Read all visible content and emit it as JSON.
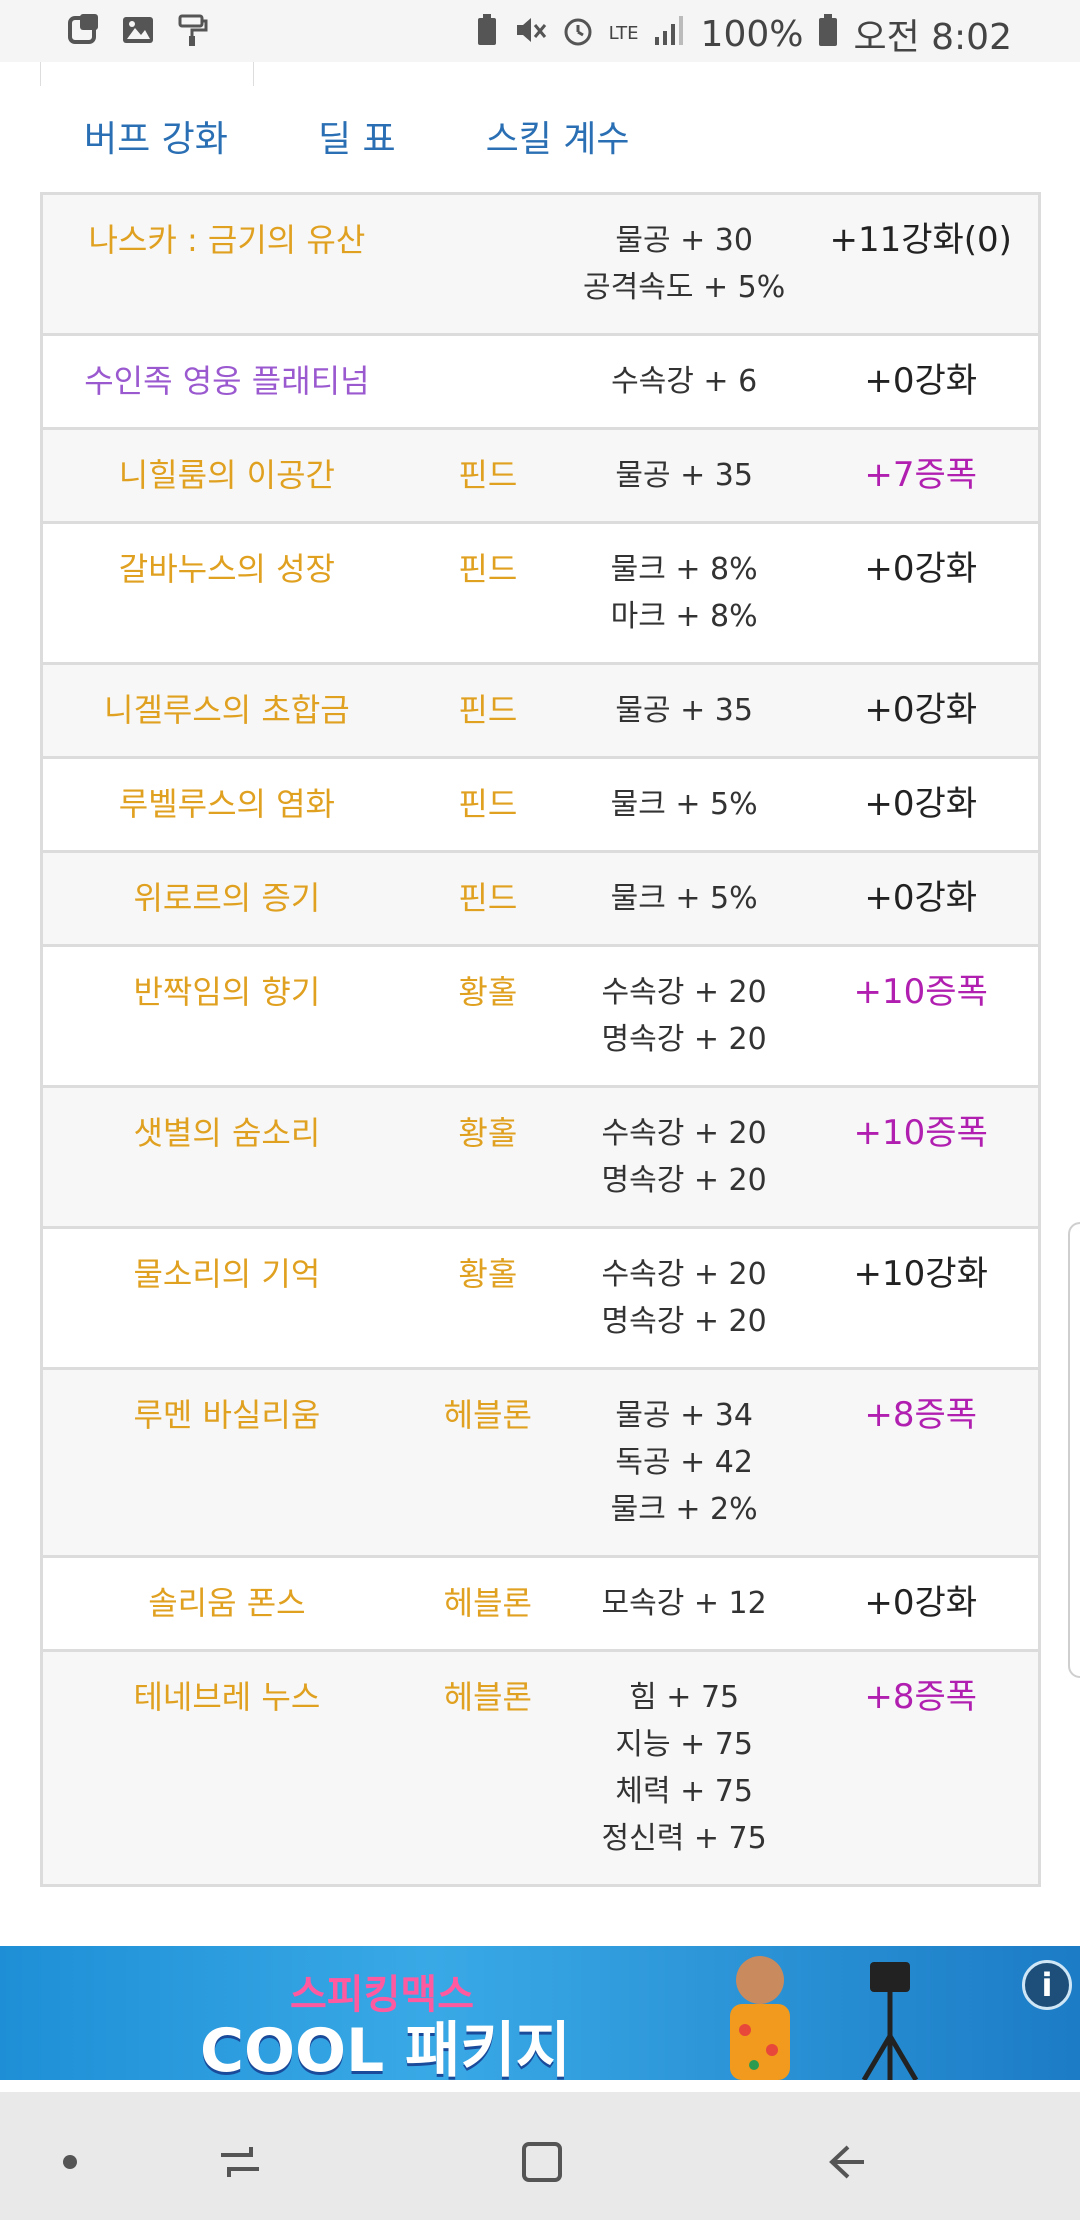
{
  "status_bar": {
    "battery": "100%",
    "time": "오전 8:02",
    "network": "LTE"
  },
  "tabs": [
    "버프 강화",
    "딜 표",
    "스킬 계수"
  ],
  "rows": [
    {
      "name": "나스카 : 금기의 유산",
      "type": "",
      "stats": [
        "물공 + 30",
        "공격속도 + 5%"
      ],
      "level": "+11강화(0)",
      "level_style": "normal",
      "name_style": "gold"
    },
    {
      "name": "수인족 영웅 플래티넘",
      "type": "",
      "stats": [
        "수속강 + 6"
      ],
      "level": "+0강화",
      "level_style": "normal",
      "name_style": "purple"
    },
    {
      "name": "니힐룸의 이공간",
      "type": "핀드",
      "stats": [
        "물공 + 35"
      ],
      "level": "+7증폭",
      "level_style": "purple",
      "name_style": "gold"
    },
    {
      "name": "갈바누스의 성장",
      "type": "핀드",
      "stats": [
        "물크 + 8%",
        "마크 + 8%"
      ],
      "level": "+0강화",
      "level_style": "normal",
      "name_style": "gold"
    },
    {
      "name": "니겔루스의 초합금",
      "type": "핀드",
      "stats": [
        "물공 + 35"
      ],
      "level": "+0강화",
      "level_style": "normal",
      "name_style": "gold"
    },
    {
      "name": "루벨루스의 염화",
      "type": "핀드",
      "stats": [
        "물크 + 5%"
      ],
      "level": "+0강화",
      "level_style": "normal",
      "name_style": "gold"
    },
    {
      "name": "위로르의 증기",
      "type": "핀드",
      "stats": [
        "물크 + 5%"
      ],
      "level": "+0강화",
      "level_style": "normal",
      "name_style": "gold"
    },
    {
      "name": "반짝임의 향기",
      "type": "황홀",
      "stats": [
        "수속강 + 20",
        "명속강 + 20"
      ],
      "level": "+10증폭",
      "level_style": "purple",
      "name_style": "gold"
    },
    {
      "name": "샛별의 숨소리",
      "type": "황홀",
      "stats": [
        "수속강 + 20",
        "명속강 + 20"
      ],
      "level": "+10증폭",
      "level_style": "purple",
      "name_style": "gold"
    },
    {
      "name": "물소리의 기억",
      "type": "황홀",
      "stats": [
        "수속강 + 20",
        "명속강 + 20"
      ],
      "level": "+10강화",
      "level_style": "normal",
      "name_style": "gold"
    },
    {
      "name": "루멘 바실리움",
      "type": "헤블론",
      "stats": [
        "물공 + 34",
        "독공 + 42",
        "물크 + 2%"
      ],
      "level": "+8증폭",
      "level_style": "purple",
      "name_style": "gold"
    },
    {
      "name": "솔리움 폰스",
      "type": "헤블론",
      "stats": [
        "모속강 + 12"
      ],
      "level": "+0강화",
      "level_style": "normal",
      "name_style": "gold"
    },
    {
      "name": "테네브레 누스",
      "type": "헤블론",
      "stats": [
        "힘 + 75",
        "지능 + 75",
        "체력 + 75",
        "정신력 + 75"
      ],
      "level": "+8증폭",
      "level_style": "purple",
      "name_style": "gold"
    }
  ],
  "ad": {
    "line1": "스피킹맥스",
    "line2": "COOL 패키지",
    "info": "i"
  },
  "colors": {
    "gold": "#e0a020",
    "purple_level": "#b01fb0",
    "purple_name": "#9b59d0",
    "tab_blue": "#2a6fb3"
  }
}
